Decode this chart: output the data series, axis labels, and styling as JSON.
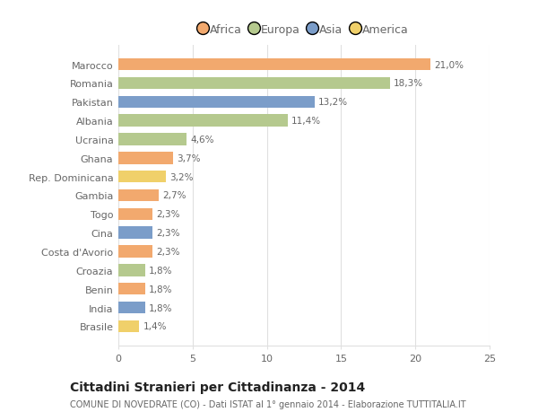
{
  "countries": [
    "Marocco",
    "Romania",
    "Pakistan",
    "Albania",
    "Ucraina",
    "Ghana",
    "Rep. Dominicana",
    "Gambia",
    "Togo",
    "Cina",
    "Costa d'Avorio",
    "Croazia",
    "Benin",
    "India",
    "Brasile"
  ],
  "values": [
    21.0,
    18.3,
    13.2,
    11.4,
    4.6,
    3.7,
    3.2,
    2.7,
    2.3,
    2.3,
    2.3,
    1.8,
    1.8,
    1.8,
    1.4
  ],
  "labels": [
    "21,0%",
    "18,3%",
    "13,2%",
    "11,4%",
    "4,6%",
    "3,7%",
    "3,2%",
    "2,7%",
    "2,3%",
    "2,3%",
    "2,3%",
    "1,8%",
    "1,8%",
    "1,8%",
    "1,4%"
  ],
  "continents": [
    "Africa",
    "Europa",
    "Asia",
    "Europa",
    "Europa",
    "Africa",
    "America",
    "Africa",
    "Africa",
    "Asia",
    "Africa",
    "Europa",
    "Africa",
    "Asia",
    "America"
  ],
  "colors": {
    "Africa": "#F2A96E",
    "Europa": "#B5C98E",
    "Asia": "#7B9DC9",
    "America": "#F0D06A"
  },
  "legend_order": [
    "Africa",
    "Europa",
    "Asia",
    "America"
  ],
  "xlim": [
    0,
    25
  ],
  "xticks": [
    0,
    5,
    10,
    15,
    20,
    25
  ],
  "title": "Cittadini Stranieri per Cittadinanza - 2014",
  "subtitle": "COMUNE DI NOVEDRATE (CO) - Dati ISTAT al 1° gennaio 2014 - Elaborazione TUTTITALIA.IT",
  "background_color": "#ffffff",
  "grid_color": "#e0e0e0",
  "bar_height": 0.65,
  "text_color": "#666666",
  "title_color": "#222222",
  "subtitle_color": "#666666",
  "label_fontsize": 7.5,
  "ytick_fontsize": 8,
  "xtick_fontsize": 8,
  "legend_fontsize": 9,
  "title_fontsize": 10,
  "subtitle_fontsize": 7
}
